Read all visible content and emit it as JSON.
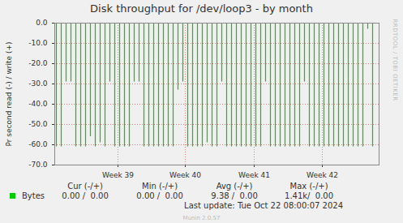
{
  "chart_data": {
    "type": "bar",
    "title": "Disk throughput for /dev/loop3 - by month",
    "y_label": "Pr second read (-) / write (+)",
    "x": [
      4,
      16,
      28,
      40,
      52,
      64,
      76,
      88,
      100,
      112,
      124,
      136,
      148,
      160,
      172,
      184,
      196,
      208,
      220,
      232,
      244,
      256,
      268,
      280,
      292,
      304,
      316,
      328,
      340,
      352,
      364,
      376,
      388,
      400,
      412,
      424,
      436,
      448,
      460,
      472,
      484,
      496,
      508,
      520,
      532,
      544,
      556,
      568,
      580,
      592,
      604,
      616,
      628,
      640,
      652,
      664,
      676,
      688,
      700,
      712,
      724,
      736,
      748,
      760,
      772,
      784
    ],
    "series": [
      {
        "name": "Bytes",
        "color": "#00cc00",
        "values": [
          -61,
          -61,
          -29,
          -29,
          -61,
          -61,
          -61,
          -56,
          -61,
          -59,
          -61,
          -29,
          -61,
          -61,
          -61,
          -61,
          -29,
          -29,
          -61,
          -61,
          -61,
          -61,
          -61,
          -61,
          -61,
          -33,
          -29,
          -61,
          -61,
          -61,
          -61,
          -59,
          -61,
          -61,
          -29,
          -61,
          -61,
          -61,
          -61,
          -61,
          -61,
          -61,
          -61,
          -29,
          -61,
          -61,
          -61,
          -61,
          -61,
          -61,
          -61,
          -29,
          -61,
          -61,
          -61,
          -61,
          -61,
          -61,
          -61,
          -61,
          -61,
          -61,
          -61,
          -61,
          -3,
          -61
        ]
      }
    ],
    "xlim": [
      0,
      800
    ],
    "xticks": [
      {
        "value": 156,
        "label": "Week 39"
      },
      {
        "value": 322,
        "label": "Week 40"
      },
      {
        "value": 492,
        "label": "Week 41"
      },
      {
        "value": 660,
        "label": "Week 42"
      }
    ],
    "ylim": [
      -70,
      0
    ],
    "yticks": [
      {
        "value": 0,
        "label": "0.0"
      },
      {
        "value": -10,
        "label": "-10.0"
      },
      {
        "value": -20,
        "label": "-20.0"
      },
      {
        "value": -30,
        "label": "-30.0"
      },
      {
        "value": -40,
        "label": "-40.0"
      },
      {
        "value": -50,
        "label": "-50.0"
      },
      {
        "value": -60,
        "label": "-60.0"
      },
      {
        "value": -70,
        "label": "-70.0"
      }
    ],
    "grid": true,
    "legend_table": {
      "headers": [
        "Cur (-/+)",
        "Min (-/+)",
        "Avg (-/+)",
        "Max (-/+)"
      ],
      "rows": [
        {
          "name": "Bytes",
          "cells": [
            "0.00 /  0.00",
            "0.00 /  0.00",
            "9.38 /  0.00",
            "1.41k/  0.00"
          ]
        }
      ]
    },
    "last_update": "Last update: Tue Oct 22 08:00:07 2024",
    "footer": "Munin 2.0.57",
    "annotations": [
      "RRDTOOL / TOBI OETIKER"
    ]
  }
}
